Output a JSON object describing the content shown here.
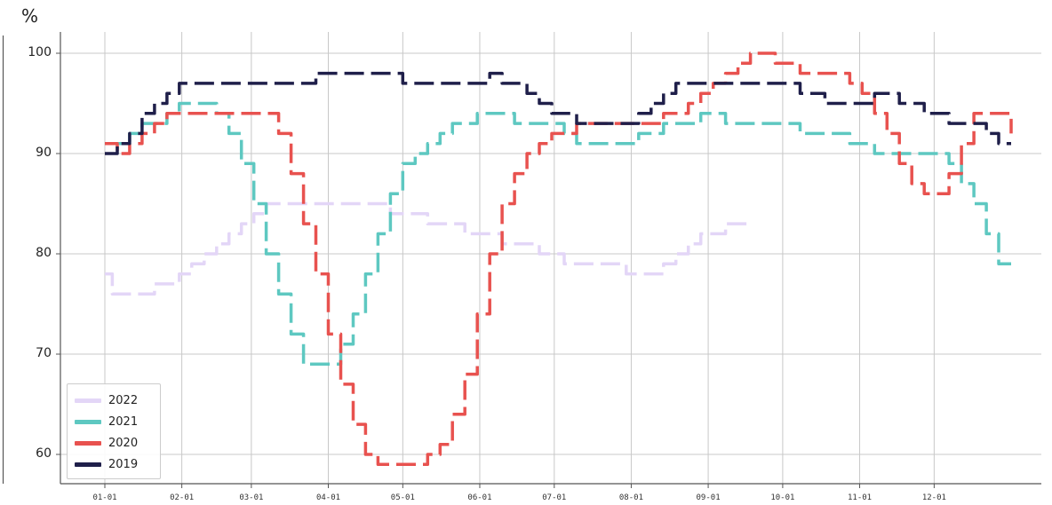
{
  "chart_data": {
    "type": "line",
    "ylabel": "%",
    "ylim": [
      57,
      102
    ],
    "yticks": [
      60,
      70,
      80,
      90,
      100
    ],
    "xlabel": "",
    "x_range_days": [
      0,
      365
    ],
    "x_tick_labels": [
      "01-01",
      "02-01",
      "03-01",
      "04-01",
      "05-01",
      "06-01",
      "07-01",
      "08-01",
      "09-01",
      "10-01",
      "11-01",
      "12-01"
    ],
    "x_tick_days": [
      0,
      31,
      59,
      90,
      120,
      151,
      181,
      212,
      243,
      273,
      304,
      334
    ],
    "grid": true,
    "legend_position": "bottom-left",
    "series": [
      {
        "name": "2022",
        "color": "#e3d6f7",
        "x": [
          0,
          3,
          10,
          15,
          20,
          25,
          30,
          35,
          40,
          45,
          50,
          55,
          60,
          65,
          70,
          75,
          80,
          85,
          90,
          95,
          100,
          105,
          110,
          115,
          120,
          125,
          130,
          135,
          140,
          145,
          150,
          155,
          160,
          165,
          170,
          175,
          180,
          185,
          190,
          195,
          200,
          205,
          210,
          215,
          220,
          225,
          230,
          235,
          240,
          245,
          250,
          255,
          260
        ],
        "y": [
          78,
          76,
          76,
          76,
          77,
          77,
          78,
          79,
          80,
          81,
          82,
          83,
          84,
          85,
          85,
          85,
          85,
          85,
          85,
          85,
          85,
          85,
          85,
          84,
          84,
          84,
          83,
          83,
          83,
          82,
          82,
          82,
          81,
          81,
          81,
          80,
          80,
          79,
          79,
          79,
          79,
          79,
          78,
          78,
          78,
          79,
          80,
          81,
          82,
          82,
          83,
          83,
          83
        ]
      },
      {
        "name": "2021",
        "color": "#5ec8c1",
        "x": [
          0,
          5,
          10,
          15,
          20,
          25,
          30,
          35,
          40,
          45,
          50,
          55,
          60,
          65,
          70,
          75,
          80,
          85,
          90,
          95,
          100,
          105,
          110,
          115,
          120,
          125,
          130,
          135,
          140,
          145,
          150,
          155,
          160,
          165,
          170,
          175,
          180,
          185,
          190,
          195,
          200,
          205,
          210,
          215,
          220,
          225,
          230,
          235,
          240,
          245,
          250,
          255,
          260,
          265,
          270,
          280,
          290,
          300,
          310,
          320,
          330,
          335,
          340,
          345,
          350,
          355,
          360,
          365
        ],
        "y": [
          91,
          91,
          92,
          93,
          93,
          94,
          95,
          95,
          95,
          94,
          92,
          89,
          85,
          80,
          76,
          72,
          69,
          69,
          69,
          71,
          74,
          78,
          82,
          86,
          89,
          90,
          91,
          92,
          93,
          93,
          94,
          94,
          94,
          93,
          93,
          93,
          93,
          92,
          91,
          91,
          91,
          91,
          91,
          92,
          92,
          93,
          93,
          93,
          94,
          94,
          93,
          93,
          93,
          93,
          93,
          92,
          92,
          91,
          90,
          90,
          90,
          90,
          89,
          87,
          85,
          82,
          79,
          79
        ]
      },
      {
        "name": "2020",
        "color": "#e8524f",
        "x": [
          0,
          5,
          10,
          15,
          20,
          25,
          30,
          35,
          40,
          45,
          50,
          55,
          60,
          65,
          70,
          75,
          80,
          85,
          90,
          95,
          100,
          105,
          110,
          115,
          120,
          125,
          130,
          135,
          140,
          145,
          150,
          155,
          160,
          165,
          170,
          175,
          180,
          185,
          190,
          195,
          200,
          205,
          210,
          215,
          220,
          225,
          230,
          235,
          240,
          245,
          250,
          255,
          260,
          265,
          270,
          275,
          280,
          285,
          290,
          295,
          300,
          305,
          310,
          315,
          320,
          325,
          330,
          335,
          340,
          345,
          350,
          355,
          360,
          365
        ],
        "y": [
          91,
          90,
          91,
          92,
          93,
          94,
          94,
          94,
          94,
          94,
          94,
          94,
          94,
          94,
          92,
          88,
          83,
          78,
          72,
          67,
          63,
          60,
          59,
          59,
          59,
          59,
          60,
          61,
          64,
          68,
          74,
          80,
          85,
          88,
          90,
          91,
          92,
          92,
          93,
          93,
          93,
          93,
          93,
          93,
          93,
          94,
          94,
          95,
          96,
          97,
          98,
          99,
          100,
          100,
          99,
          99,
          98,
          98,
          98,
          98,
          97,
          96,
          94,
          92,
          89,
          87,
          86,
          86,
          88,
          91,
          94,
          94,
          94,
          92
        ]
      },
      {
        "name": "2019",
        "color": "#1f1f4a",
        "x": [
          0,
          5,
          10,
          15,
          20,
          25,
          30,
          35,
          40,
          45,
          50,
          55,
          60,
          65,
          70,
          75,
          80,
          85,
          90,
          95,
          100,
          105,
          110,
          115,
          120,
          125,
          130,
          135,
          140,
          145,
          150,
          155,
          160,
          165,
          170,
          175,
          180,
          185,
          190,
          195,
          200,
          205,
          210,
          215,
          220,
          225,
          230,
          235,
          240,
          245,
          250,
          255,
          260,
          265,
          270,
          275,
          280,
          285,
          290,
          295,
          300,
          305,
          310,
          315,
          320,
          325,
          330,
          335,
          340,
          345,
          350,
          355,
          360,
          365
        ],
        "y": [
          90,
          91,
          92,
          94,
          95,
          96,
          97,
          97,
          97,
          97,
          97,
          97,
          97,
          97,
          97,
          97,
          97,
          98,
          98,
          98,
          98,
          98,
          98,
          98,
          97,
          97,
          97,
          97,
          97,
          97,
          97,
          98,
          97,
          97,
          96,
          95,
          94,
          94,
          93,
          93,
          93,
          93,
          93,
          94,
          95,
          96,
          97,
          97,
          97,
          97,
          97,
          97,
          97,
          97,
          97,
          97,
          96,
          96,
          95,
          95,
          95,
          95,
          96,
          96,
          95,
          95,
          94,
          94,
          93,
          93,
          93,
          92,
          91,
          91
        ]
      }
    ]
  },
  "legend": {
    "items": [
      {
        "label": "2022",
        "color": "#e3d6f7"
      },
      {
        "label": "2021",
        "color": "#5ec8c1"
      },
      {
        "label": "2020",
        "color": "#e8524f"
      },
      {
        "label": "2019",
        "color": "#1f1f4a"
      }
    ]
  }
}
